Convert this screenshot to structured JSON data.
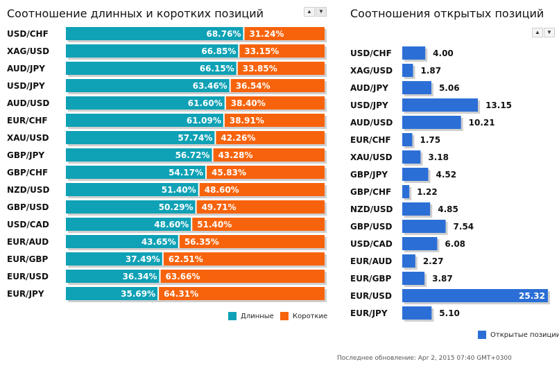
{
  "left": {
    "title": "Соотношение длинных и коротких позиций",
    "legend_long": "Длинные",
    "legend_short": "Короткие"
  },
  "right": {
    "title": "Соотношения открытых позиций",
    "legend": "Открытые позиции"
  },
  "footer": "Последнее обновление: Apr 2, 2015 07:40 GMT+0300",
  "colors": {
    "long": "#0fa1b5",
    "short": "#f7630c",
    "open": "#2b6fd6",
    "shadow": "#cfcfcf"
  },
  "icons": {
    "sort_up": "triangle-up-icon",
    "sort_down": "triangle-down-icon"
  },
  "chart_data": [
    {
      "type": "bar",
      "stacked": true,
      "orientation": "horizontal",
      "title": "Соотношение длинных и коротких позиций",
      "categories": [
        "USD/CHF",
        "XAG/USD",
        "AUD/JPY",
        "USD/JPY",
        "AUD/USD",
        "EUR/CHF",
        "XAU/USD",
        "GBP/JPY",
        "GBP/CHF",
        "NZD/USD",
        "GBP/USD",
        "USD/CAD",
        "EUR/AUD",
        "EUR/GBP",
        "EUR/USD",
        "EUR/JPY"
      ],
      "series": [
        {
          "name": "Длинные",
          "values": [
            68.76,
            66.85,
            66.15,
            63.46,
            61.6,
            61.09,
            57.74,
            56.72,
            54.17,
            51.4,
            50.29,
            48.6,
            43.65,
            37.49,
            36.34,
            35.69
          ],
          "labels": [
            "68.76%",
            "66.85%",
            "66.15%",
            "63.46%",
            "61.60%",
            "61.09%",
            "57.74%",
            "56.72%",
            "54.17%",
            "51.40%",
            "50.29%",
            "48.60%",
            "43.65%",
            "37.49%",
            "36.34%",
            "35.69%"
          ]
        },
        {
          "name": "Короткие",
          "values": [
            31.24,
            33.15,
            33.85,
            36.54,
            38.4,
            38.91,
            42.26,
            43.28,
            45.83,
            48.6,
            49.71,
            51.4,
            56.35,
            62.51,
            63.66,
            64.31
          ],
          "labels": [
            "31.24%",
            "33.15%",
            "33.85%",
            "36.54%",
            "38.40%",
            "38.91%",
            "42.26%",
            "43.28%",
            "45.83%",
            "48.60%",
            "49.71%",
            "51.40%",
            "56.35%",
            "62.51%",
            "63.66%",
            "64.31%"
          ]
        }
      ],
      "legend": "bottom-right"
    },
    {
      "type": "bar",
      "orientation": "horizontal",
      "title": "Соотношения открытых позиций",
      "categories": [
        "USD/CHF",
        "XAG/USD",
        "AUD/JPY",
        "USD/JPY",
        "AUD/USD",
        "EUR/CHF",
        "XAU/USD",
        "GBP/JPY",
        "GBP/CHF",
        "NZD/USD",
        "GBP/USD",
        "USD/CAD",
        "EUR/AUD",
        "EUR/GBP",
        "EUR/USD",
        "EUR/JPY"
      ],
      "series": [
        {
          "name": "Открытые позиции",
          "values": [
            4.0,
            1.87,
            5.06,
            13.15,
            10.21,
            1.75,
            3.18,
            4.52,
            1.22,
            4.85,
            7.54,
            6.08,
            2.27,
            3.87,
            25.32,
            5.1
          ],
          "labels": [
            "4.00",
            "1.87",
            "5.06",
            "13.15",
            "10.21",
            "1.75",
            "3.18",
            "4.52",
            "1.22",
            "4.85",
            "7.54",
            "6.08",
            "2.27",
            "3.87",
            "25.32",
            "5.10"
          ]
        }
      ],
      "legend": "bottom-right"
    }
  ]
}
